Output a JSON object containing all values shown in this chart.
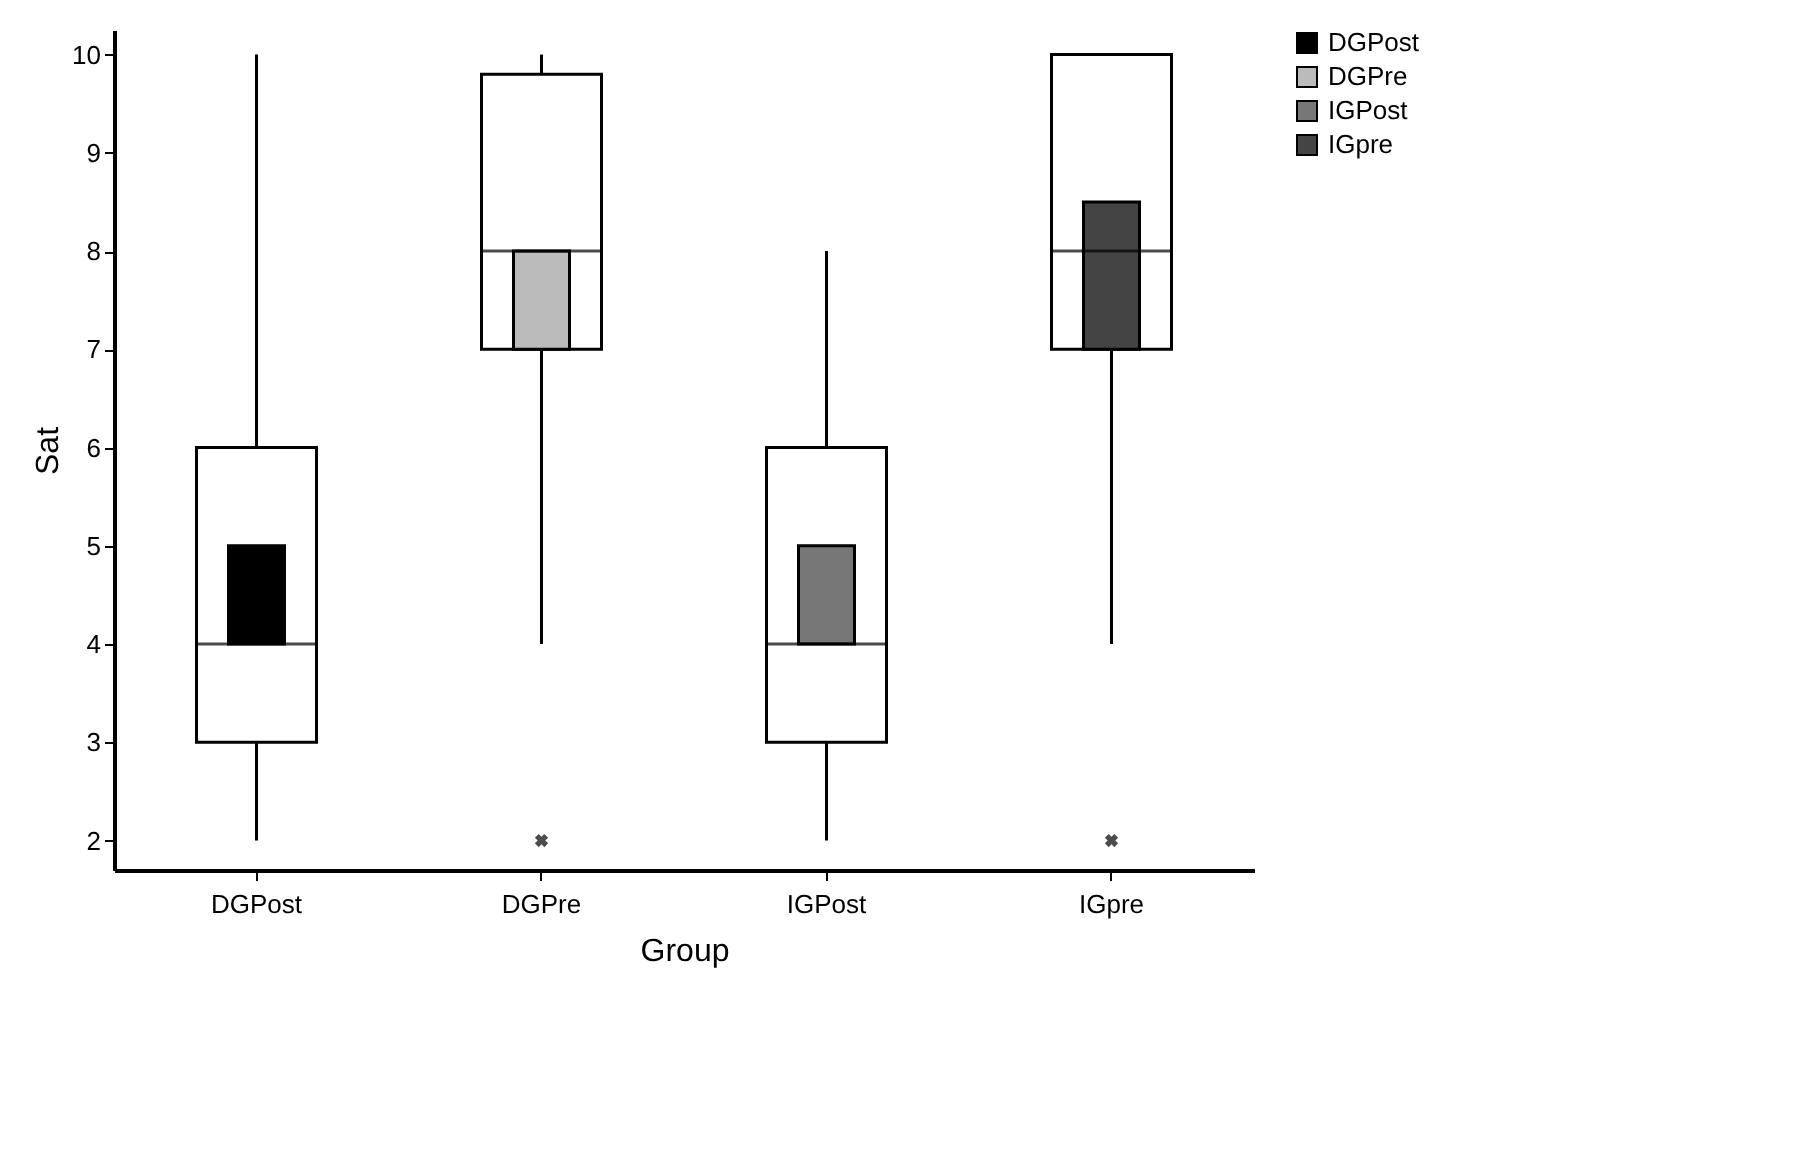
{
  "chart_data": {
    "type": "box",
    "xlabel": "Group",
    "ylabel": "Sat",
    "categories": [
      "DGPost",
      "DGPre",
      "IGPost",
      "IGpre"
    ],
    "series": [
      {
        "boxes": [
          {
            "low": 2,
            "q1": 3,
            "median": 4,
            "q3": 6,
            "high": 10
          },
          {
            "low": 4,
            "q1": 7,
            "median": 8,
            "q3": 9.8,
            "high": 10,
            "outliers": [
              2
            ]
          },
          {
            "low": 2,
            "q1": 3,
            "median": 4,
            "q3": 6,
            "high": 8
          },
          {
            "low": 4,
            "q1": 7,
            "median": 8,
            "q3": 10,
            "high": 10,
            "outliers": [
              2
            ]
          }
        ]
      },
      {
        "type": "bar",
        "name": "DGPost",
        "color": "#000000",
        "base": [
          4,
          null,
          null,
          null
        ],
        "values": [
          1,
          null,
          null,
          null
        ]
      },
      {
        "type": "bar",
        "name": "DGPre",
        "color": "#bbbbbb",
        "base": [
          null,
          7,
          null,
          null
        ],
        "values": [
          null,
          1,
          null,
          null
        ]
      },
      {
        "type": "bar",
        "name": "IGPost",
        "color": "#777777",
        "base": [
          null,
          null,
          4,
          null
        ],
        "values": [
          null,
          null,
          1,
          null
        ]
      },
      {
        "type": "bar",
        "name": "IGpre",
        "color": "#444444",
        "base": [
          null,
          null,
          null,
          7
        ],
        "values": [
          null,
          null,
          null,
          1.5
        ]
      }
    ],
    "ylim": [
      1.7,
      10.25
    ],
    "yticks": [
      2,
      3,
      4,
      5,
      6,
      7,
      8,
      9,
      10
    ],
    "legend": "top right",
    "grid": false
  }
}
